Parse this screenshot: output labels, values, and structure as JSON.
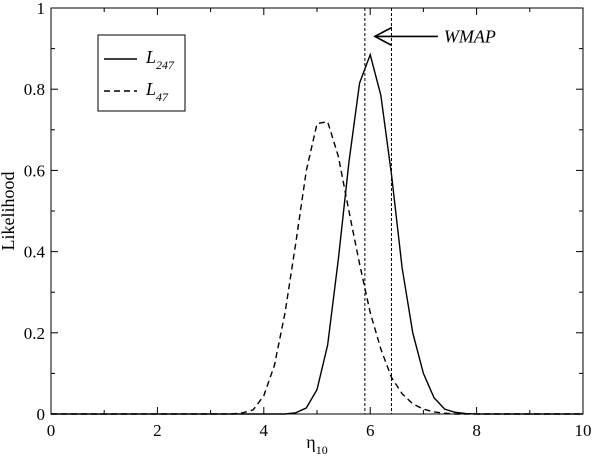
{
  "chart_data": {
    "type": "line",
    "title": "",
    "xlabel": "η",
    "xlabel_subscript": "10",
    "ylabel": "Likelihood",
    "xlim": [
      0,
      10
    ],
    "ylim": [
      0,
      1
    ],
    "xticks": [
      "0",
      "2",
      "4",
      "6",
      "8",
      "10"
    ],
    "yticks": [
      "0",
      "0.2",
      "0.4",
      "0.6",
      "0.8",
      "1"
    ],
    "xtick_values": [
      0,
      2,
      4,
      6,
      8,
      10
    ],
    "ytick_values": [
      0,
      0.2,
      0.4,
      0.6,
      0.8,
      1
    ],
    "grid": false,
    "legend_position": "top-left",
    "series": [
      {
        "name": "L",
        "name_subscript": "247",
        "style": "solid",
        "x": [
          0,
          4.4,
          4.6,
          4.8,
          5.0,
          5.2,
          5.4,
          5.6,
          5.8,
          6.0,
          6.2,
          6.4,
          6.6,
          6.8,
          7.0,
          7.2,
          7.4,
          7.6,
          7.8,
          8.0,
          10
        ],
        "y": [
          0,
          0,
          0.003,
          0.015,
          0.06,
          0.17,
          0.38,
          0.62,
          0.815,
          0.885,
          0.785,
          0.59,
          0.36,
          0.2,
          0.1,
          0.04,
          0.012,
          0.004,
          0.001,
          0,
          0
        ]
      },
      {
        "name": "L",
        "name_subscript": "47",
        "style": "dashed",
        "x": [
          0,
          3.4,
          3.6,
          3.8,
          4.0,
          4.2,
          4.4,
          4.6,
          4.8,
          5.0,
          5.2,
          5.4,
          5.6,
          5.8,
          6.0,
          6.2,
          6.4,
          6.6,
          6.8,
          7.0,
          7.2,
          7.4,
          7.6,
          10
        ],
        "y": [
          0,
          0,
          0.003,
          0.01,
          0.045,
          0.12,
          0.25,
          0.42,
          0.6,
          0.715,
          0.72,
          0.635,
          0.5,
          0.37,
          0.25,
          0.16,
          0.09,
          0.05,
          0.025,
          0.012,
          0.005,
          0.002,
          0,
          0
        ]
      }
    ],
    "vlines": [
      5.9,
      6.4
    ],
    "annotation": {
      "text": "WMAP",
      "arrow_to_x": 5.9,
      "y": 0.93
    }
  }
}
